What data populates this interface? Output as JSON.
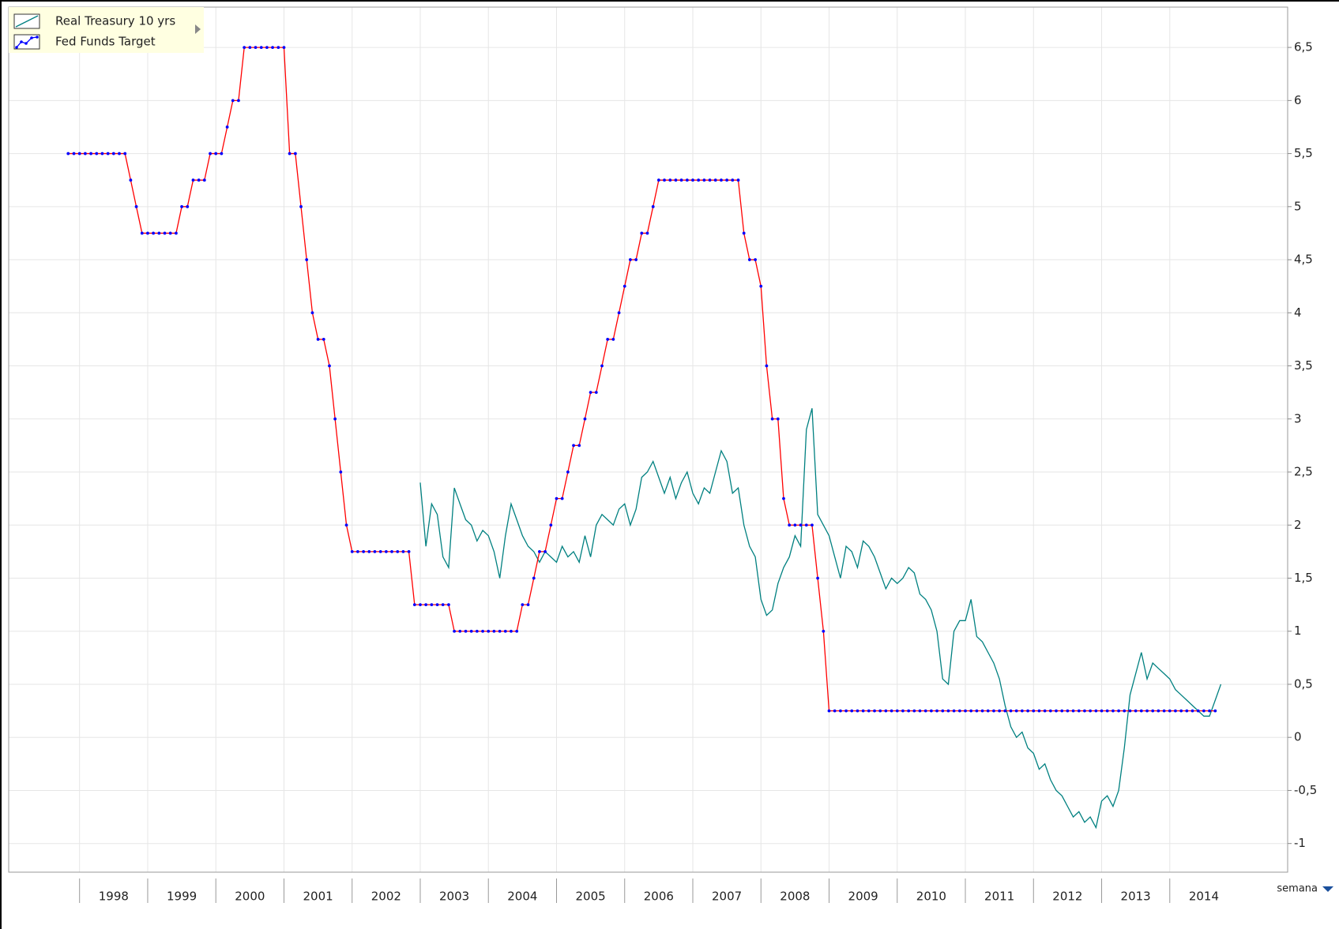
{
  "chart_data": {
    "type": "line",
    "x_unit": "semana",
    "x": [
      1997.833,
      1997.917,
      1998,
      1998.083,
      1998.167,
      1998.25,
      1998.333,
      1998.417,
      1998.5,
      1998.583,
      1998.667,
      1998.75,
      1998.833,
      1998.917,
      1999,
      1999.083,
      1999.167,
      1999.25,
      1999.333,
      1999.417,
      1999.5,
      1999.583,
      1999.667,
      1999.75,
      1999.833,
      1999.917,
      2000,
      2000.083,
      2000.167,
      2000.25,
      2000.333,
      2000.417,
      2000.5,
      2000.583,
      2000.667,
      2000.75,
      2000.833,
      2000.917,
      2001,
      2001.083,
      2001.167,
      2001.25,
      2001.333,
      2001.417,
      2001.5,
      2001.583,
      2001.667,
      2001.75,
      2001.833,
      2001.917,
      2002,
      2002.083,
      2002.167,
      2002.25,
      2002.333,
      2002.417,
      2002.5,
      2002.583,
      2002.667,
      2002.75,
      2002.833,
      2002.917,
      2003,
      2003.083,
      2003.167,
      2003.25,
      2003.333,
      2003.417,
      2003.5,
      2003.583,
      2003.667,
      2003.75,
      2003.833,
      2003.917,
      2004,
      2004.083,
      2004.167,
      2004.25,
      2004.333,
      2004.417,
      2004.5,
      2004.583,
      2004.667,
      2004.75,
      2004.833,
      2004.917,
      2005,
      2005.083,
      2005.167,
      2005.25,
      2005.333,
      2005.417,
      2005.5,
      2005.583,
      2005.667,
      2005.75,
      2005.833,
      2005.917,
      2006,
      2006.083,
      2006.167,
      2006.25,
      2006.333,
      2006.417,
      2006.5,
      2006.583,
      2006.667,
      2006.75,
      2006.833,
      2006.917,
      2007,
      2007.083,
      2007.167,
      2007.25,
      2007.333,
      2007.417,
      2007.5,
      2007.583,
      2007.667,
      2007.75,
      2007.833,
      2007.917,
      2008,
      2008.083,
      2008.167,
      2008.25,
      2008.333,
      2008.417,
      2008.5,
      2008.583,
      2008.667,
      2008.75,
      2008.833,
      2008.917,
      2009,
      2009.083,
      2009.167,
      2009.25,
      2009.333,
      2009.417,
      2009.5,
      2009.583,
      2009.667,
      2009.75,
      2009.833,
      2009.917,
      2010,
      2010.083,
      2010.167,
      2010.25,
      2010.333,
      2010.417,
      2010.5,
      2010.583,
      2010.667,
      2010.75,
      2010.833,
      2010.917,
      2011,
      2011.083,
      2011.167,
      2011.25,
      2011.333,
      2011.417,
      2011.5,
      2011.583,
      2011.667,
      2011.75,
      2011.833,
      2011.917,
      2012,
      2012.083,
      2012.167,
      2012.25,
      2012.333,
      2012.417,
      2012.5,
      2012.583,
      2012.667,
      2012.75,
      2012.833,
      2012.917,
      2013,
      2013.083,
      2013.167,
      2013.25,
      2013.333,
      2013.417,
      2013.5,
      2013.583,
      2013.667,
      2013.75,
      2013.833,
      2013.917,
      2014,
      2014.083,
      2014.167,
      2014.25,
      2014.333,
      2014.417,
      2014.5,
      2014.583,
      2014.667,
      2014.75
    ],
    "series": [
      {
        "name": "Real Treasury 10 yrs",
        "color": "#008080",
        "values": [
          null,
          null,
          null,
          null,
          null,
          null,
          null,
          null,
          null,
          null,
          null,
          null,
          null,
          null,
          null,
          null,
          null,
          null,
          null,
          null,
          null,
          null,
          null,
          null,
          null,
          null,
          null,
          null,
          null,
          null,
          null,
          null,
          null,
          null,
          null,
          null,
          null,
          null,
          null,
          null,
          null,
          null,
          null,
          null,
          null,
          null,
          null,
          null,
          null,
          null,
          null,
          null,
          null,
          null,
          null,
          null,
          null,
          null,
          null,
          null,
          null,
          null,
          2.4,
          1.8,
          2.2,
          2.1,
          1.7,
          1.6,
          2.35,
          2.2,
          2.05,
          2.0,
          1.85,
          1.95,
          1.9,
          1.75,
          1.5,
          1.9,
          2.2,
          2.05,
          1.9,
          1.8,
          1.75,
          1.65,
          1.75,
          1.7,
          1.65,
          1.8,
          1.7,
          1.75,
          1.65,
          1.9,
          1.7,
          2.0,
          2.1,
          2.05,
          2.0,
          2.15,
          2.2,
          2.0,
          2.15,
          2.45,
          2.5,
          2.6,
          2.45,
          2.3,
          2.45,
          2.25,
          2.4,
          2.5,
          2.3,
          2.2,
          2.35,
          2.3,
          2.5,
          2.7,
          2.6,
          2.3,
          2.35,
          2.0,
          1.8,
          1.7,
          1.3,
          1.15,
          1.2,
          1.45,
          1.6,
          1.7,
          1.9,
          1.8,
          2.9,
          3.1,
          2.1,
          2.0,
          1.9,
          1.7,
          1.5,
          1.8,
          1.75,
          1.6,
          1.85,
          1.8,
          1.7,
          1.55,
          1.4,
          1.5,
          1.45,
          1.5,
          1.6,
          1.55,
          1.35,
          1.3,
          1.2,
          1.0,
          0.55,
          0.5,
          1.0,
          1.1,
          1.1,
          1.3,
          0.95,
          0.9,
          0.8,
          0.7,
          0.55,
          0.3,
          0.1,
          0.0,
          0.05,
          -0.1,
          -0.15,
          -0.3,
          -0.25,
          -0.4,
          -0.5,
          -0.55,
          -0.65,
          -0.75,
          -0.7,
          -0.8,
          -0.75,
          -0.85,
          -0.6,
          -0.55,
          -0.65,
          -0.5,
          -0.1,
          0.4,
          0.6,
          0.8,
          0.55,
          0.7,
          0.65,
          0.6,
          0.55,
          0.45,
          0.4,
          0.35,
          0.3,
          0.25,
          0.2,
          0.2,
          0.35,
          0.5
        ]
      },
      {
        "name": "Fed Funds Target",
        "color": "#ff0000",
        "marker_color": "#0000ff",
        "values": [
          5.5,
          5.5,
          5.5,
          5.5,
          5.5,
          5.5,
          5.5,
          5.5,
          5.5,
          5.5,
          5.5,
          5.25,
          5,
          4.75,
          4.75,
          4.75,
          4.75,
          4.75,
          4.75,
          4.75,
          5,
          5,
          5.25,
          5.25,
          5.25,
          5.5,
          5.5,
          5.5,
          5.75,
          6,
          6,
          6.5,
          6.5,
          6.5,
          6.5,
          6.5,
          6.5,
          6.5,
          6.5,
          5.5,
          5.5,
          5,
          4.5,
          4,
          3.75,
          3.75,
          3.5,
          3,
          2.5,
          2,
          1.75,
          1.75,
          1.75,
          1.75,
          1.75,
          1.75,
          1.75,
          1.75,
          1.75,
          1.75,
          1.75,
          1.25,
          1.25,
          1.25,
          1.25,
          1.25,
          1.25,
          1.25,
          1,
          1,
          1,
          1,
          1,
          1,
          1,
          1,
          1,
          1,
          1,
          1,
          1.25,
          1.25,
          1.5,
          1.75,
          1.75,
          2,
          2.25,
          2.25,
          2.5,
          2.75,
          2.75,
          3,
          3.25,
          3.25,
          3.5,
          3.75,
          3.75,
          4,
          4.25,
          4.5,
          4.5,
          4.75,
          4.75,
          5,
          5.25,
          5.25,
          5.25,
          5.25,
          5.25,
          5.25,
          5.25,
          5.25,
          5.25,
          5.25,
          5.25,
          5.25,
          5.25,
          5.25,
          5.25,
          4.75,
          4.5,
          4.5,
          4.25,
          3.5,
          3,
          3,
          2.25,
          2,
          2,
          2,
          2,
          2,
          1.5,
          1,
          0.25,
          0.25,
          0.25,
          0.25,
          0.25,
          0.25,
          0.25,
          0.25,
          0.25,
          0.25,
          0.25,
          0.25,
          0.25,
          0.25,
          0.25,
          0.25,
          0.25,
          0.25,
          0.25,
          0.25,
          0.25,
          0.25,
          0.25,
          0.25,
          0.25,
          0.25,
          0.25,
          0.25,
          0.25,
          0.25,
          0.25,
          0.25,
          0.25,
          0.25,
          0.25,
          0.25,
          0.25,
          0.25,
          0.25,
          0.25,
          0.25,
          0.25,
          0.25,
          0.25,
          0.25,
          0.25,
          0.25,
          0.25,
          0.25,
          0.25,
          0.25,
          0.25,
          0.25,
          0.25,
          0.25,
          0.25,
          0.25,
          0.25,
          0.25,
          0.25,
          0.25,
          0.25,
          0.25,
          0.25,
          0.25,
          0.25,
          0.25,
          0.25,
          0.25,
          null
        ]
      }
    ],
    "xlim": [
      1996.96,
      2015.73
    ],
    "xticks": [
      1998,
      1999,
      2000,
      2001,
      2002,
      2003,
      2004,
      2005,
      2006,
      2007,
      2008,
      2009,
      2010,
      2011,
      2012,
      2013,
      2014
    ],
    "ylim": [
      -1.27,
      6.88
    ],
    "yticks": [
      -1,
      {
        "value": -0.5,
        "label": "-0,5"
      },
      0,
      {
        "value": 0.5,
        "label": "0,5"
      },
      1,
      {
        "value": 1.5,
        "label": "1,5"
      },
      2,
      {
        "value": 2.5,
        "label": "2,5"
      },
      3,
      {
        "value": 3.5,
        "label": "3,5"
      },
      4,
      {
        "value": 4.5,
        "label": "4,5"
      },
      5,
      {
        "value": 5.5,
        "label": "5,5"
      },
      6,
      {
        "value": 6.5,
        "label": "6,5"
      }
    ],
    "grid": true,
    "legend": "top-left"
  }
}
